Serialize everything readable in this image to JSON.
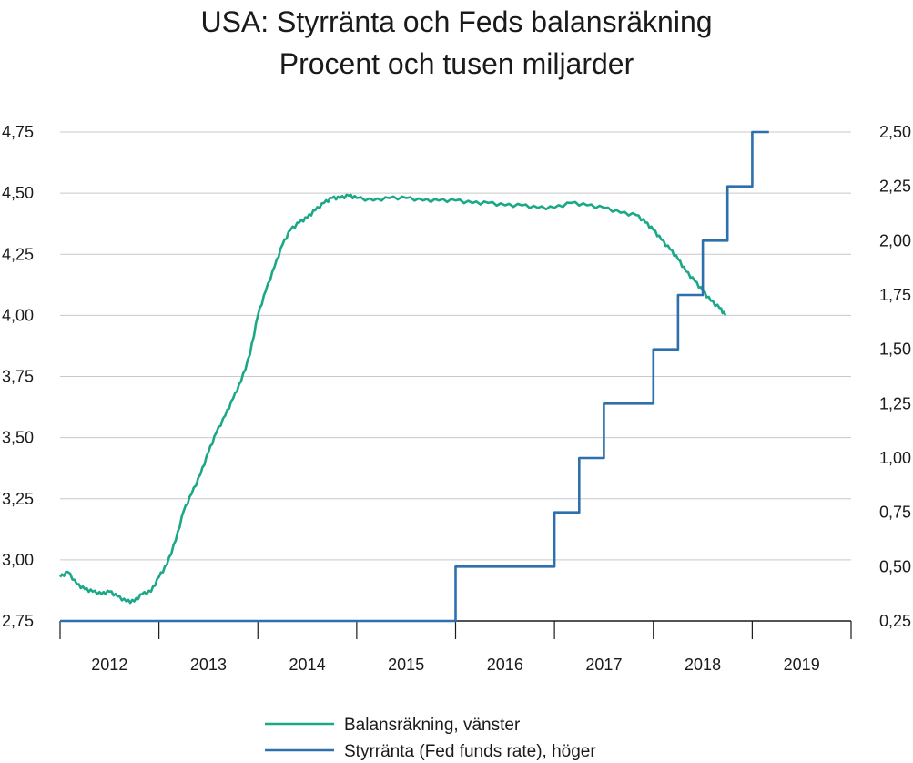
{
  "title_line1": "USA: Styrränta och Feds balansräkning",
  "title_line2": "Procent och tusen miljarder",
  "chart_data": {
    "type": "line",
    "grid": true,
    "legend_position": "bottom-center",
    "left_axis": {
      "range": [
        2.75,
        4.75
      ],
      "ticks": [
        2.75,
        3.0,
        3.25,
        3.5,
        3.75,
        4.0,
        4.25,
        4.5,
        4.75
      ],
      "tick_labels": [
        "2,75",
        "3,00",
        "3,25",
        "3,50",
        "3,75",
        "4,00",
        "4,25",
        "4,50",
        "4,75"
      ]
    },
    "right_axis": {
      "range": [
        0.25,
        2.5
      ],
      "ticks": [
        0.25,
        0.5,
        0.75,
        1.0,
        1.25,
        1.5,
        1.75,
        2.0,
        2.25,
        2.5
      ],
      "tick_labels": [
        "0,25",
        "0,50",
        "0,75",
        "1,00",
        "1,25",
        "1,50",
        "1,75",
        "2,00",
        "2,25",
        "2,50"
      ]
    },
    "x_axis": {
      "range": [
        2012,
        2020
      ],
      "year_labels": [
        "2012",
        "2013",
        "2014",
        "2015",
        "2016",
        "2017",
        "2018",
        "2019"
      ]
    },
    "series": [
      {
        "name": "Balansräkning, vänster",
        "axis": "left",
        "color": "#1aa886",
        "points": [
          [
            2012.0,
            2.93
          ],
          [
            2012.08,
            2.95
          ],
          [
            2012.17,
            2.9
          ],
          [
            2012.25,
            2.88
          ],
          [
            2012.33,
            2.87
          ],
          [
            2012.42,
            2.86
          ],
          [
            2012.5,
            2.87
          ],
          [
            2012.58,
            2.85
          ],
          [
            2012.67,
            2.83
          ],
          [
            2012.75,
            2.83
          ],
          [
            2012.83,
            2.86
          ],
          [
            2012.92,
            2.87
          ],
          [
            2013.0,
            2.93
          ],
          [
            2013.08,
            2.98
          ],
          [
            2013.17,
            3.08
          ],
          [
            2013.25,
            3.2
          ],
          [
            2013.33,
            3.27
          ],
          [
            2013.42,
            3.35
          ],
          [
            2013.5,
            3.44
          ],
          [
            2013.58,
            3.52
          ],
          [
            2013.67,
            3.59
          ],
          [
            2013.75,
            3.66
          ],
          [
            2013.83,
            3.73
          ],
          [
            2013.92,
            3.84
          ],
          [
            2014.0,
            4.0
          ],
          [
            2014.08,
            4.1
          ],
          [
            2014.17,
            4.2
          ],
          [
            2014.25,
            4.29
          ],
          [
            2014.33,
            4.35
          ],
          [
            2014.42,
            4.38
          ],
          [
            2014.5,
            4.4
          ],
          [
            2014.58,
            4.43
          ],
          [
            2014.67,
            4.46
          ],
          [
            2014.75,
            4.48
          ],
          [
            2014.83,
            4.48
          ],
          [
            2014.92,
            4.49
          ],
          [
            2015.0,
            4.48
          ],
          [
            2015.17,
            4.47
          ],
          [
            2015.33,
            4.48
          ],
          [
            2015.5,
            4.48
          ],
          [
            2015.67,
            4.47
          ],
          [
            2015.83,
            4.47
          ],
          [
            2016.0,
            4.47
          ],
          [
            2016.17,
            4.46
          ],
          [
            2016.33,
            4.46
          ],
          [
            2016.5,
            4.45
          ],
          [
            2016.67,
            4.45
          ],
          [
            2016.83,
            4.44
          ],
          [
            2017.0,
            4.44
          ],
          [
            2017.17,
            4.46
          ],
          [
            2017.33,
            4.45
          ],
          [
            2017.5,
            4.44
          ],
          [
            2017.67,
            4.42
          ],
          [
            2017.83,
            4.41
          ],
          [
            2017.92,
            4.38
          ],
          [
            2018.0,
            4.35
          ],
          [
            2018.08,
            4.31
          ],
          [
            2018.17,
            4.27
          ],
          [
            2018.25,
            4.23
          ],
          [
            2018.33,
            4.18
          ],
          [
            2018.42,
            4.14
          ],
          [
            2018.5,
            4.1
          ],
          [
            2018.58,
            4.06
          ],
          [
            2018.67,
            4.03
          ],
          [
            2018.73,
            4.0
          ]
        ]
      },
      {
        "name": "Styrränta (Fed funds rate), höger",
        "axis": "right",
        "color": "#2e6fad",
        "steps": [
          [
            2012.0,
            0.25
          ],
          [
            2016.0,
            0.5
          ],
          [
            2017.0,
            0.75
          ],
          [
            2017.25,
            1.0
          ],
          [
            2017.5,
            1.25
          ],
          [
            2018.0,
            1.5
          ],
          [
            2018.25,
            1.75
          ],
          [
            2018.5,
            2.0
          ],
          [
            2018.75,
            2.25
          ],
          [
            2019.0,
            2.5
          ],
          [
            2019.17,
            2.5
          ]
        ]
      }
    ]
  }
}
